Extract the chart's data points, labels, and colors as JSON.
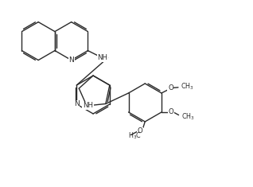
{
  "bg_color": "#ffffff",
  "line_color": "#2a2a2a",
  "line_width": 1.0,
  "figsize": [
    3.18,
    2.35
  ],
  "dpi": 100,
  "xlim": [
    0,
    10.5
  ],
  "ylim": [
    0,
    7.8
  ]
}
